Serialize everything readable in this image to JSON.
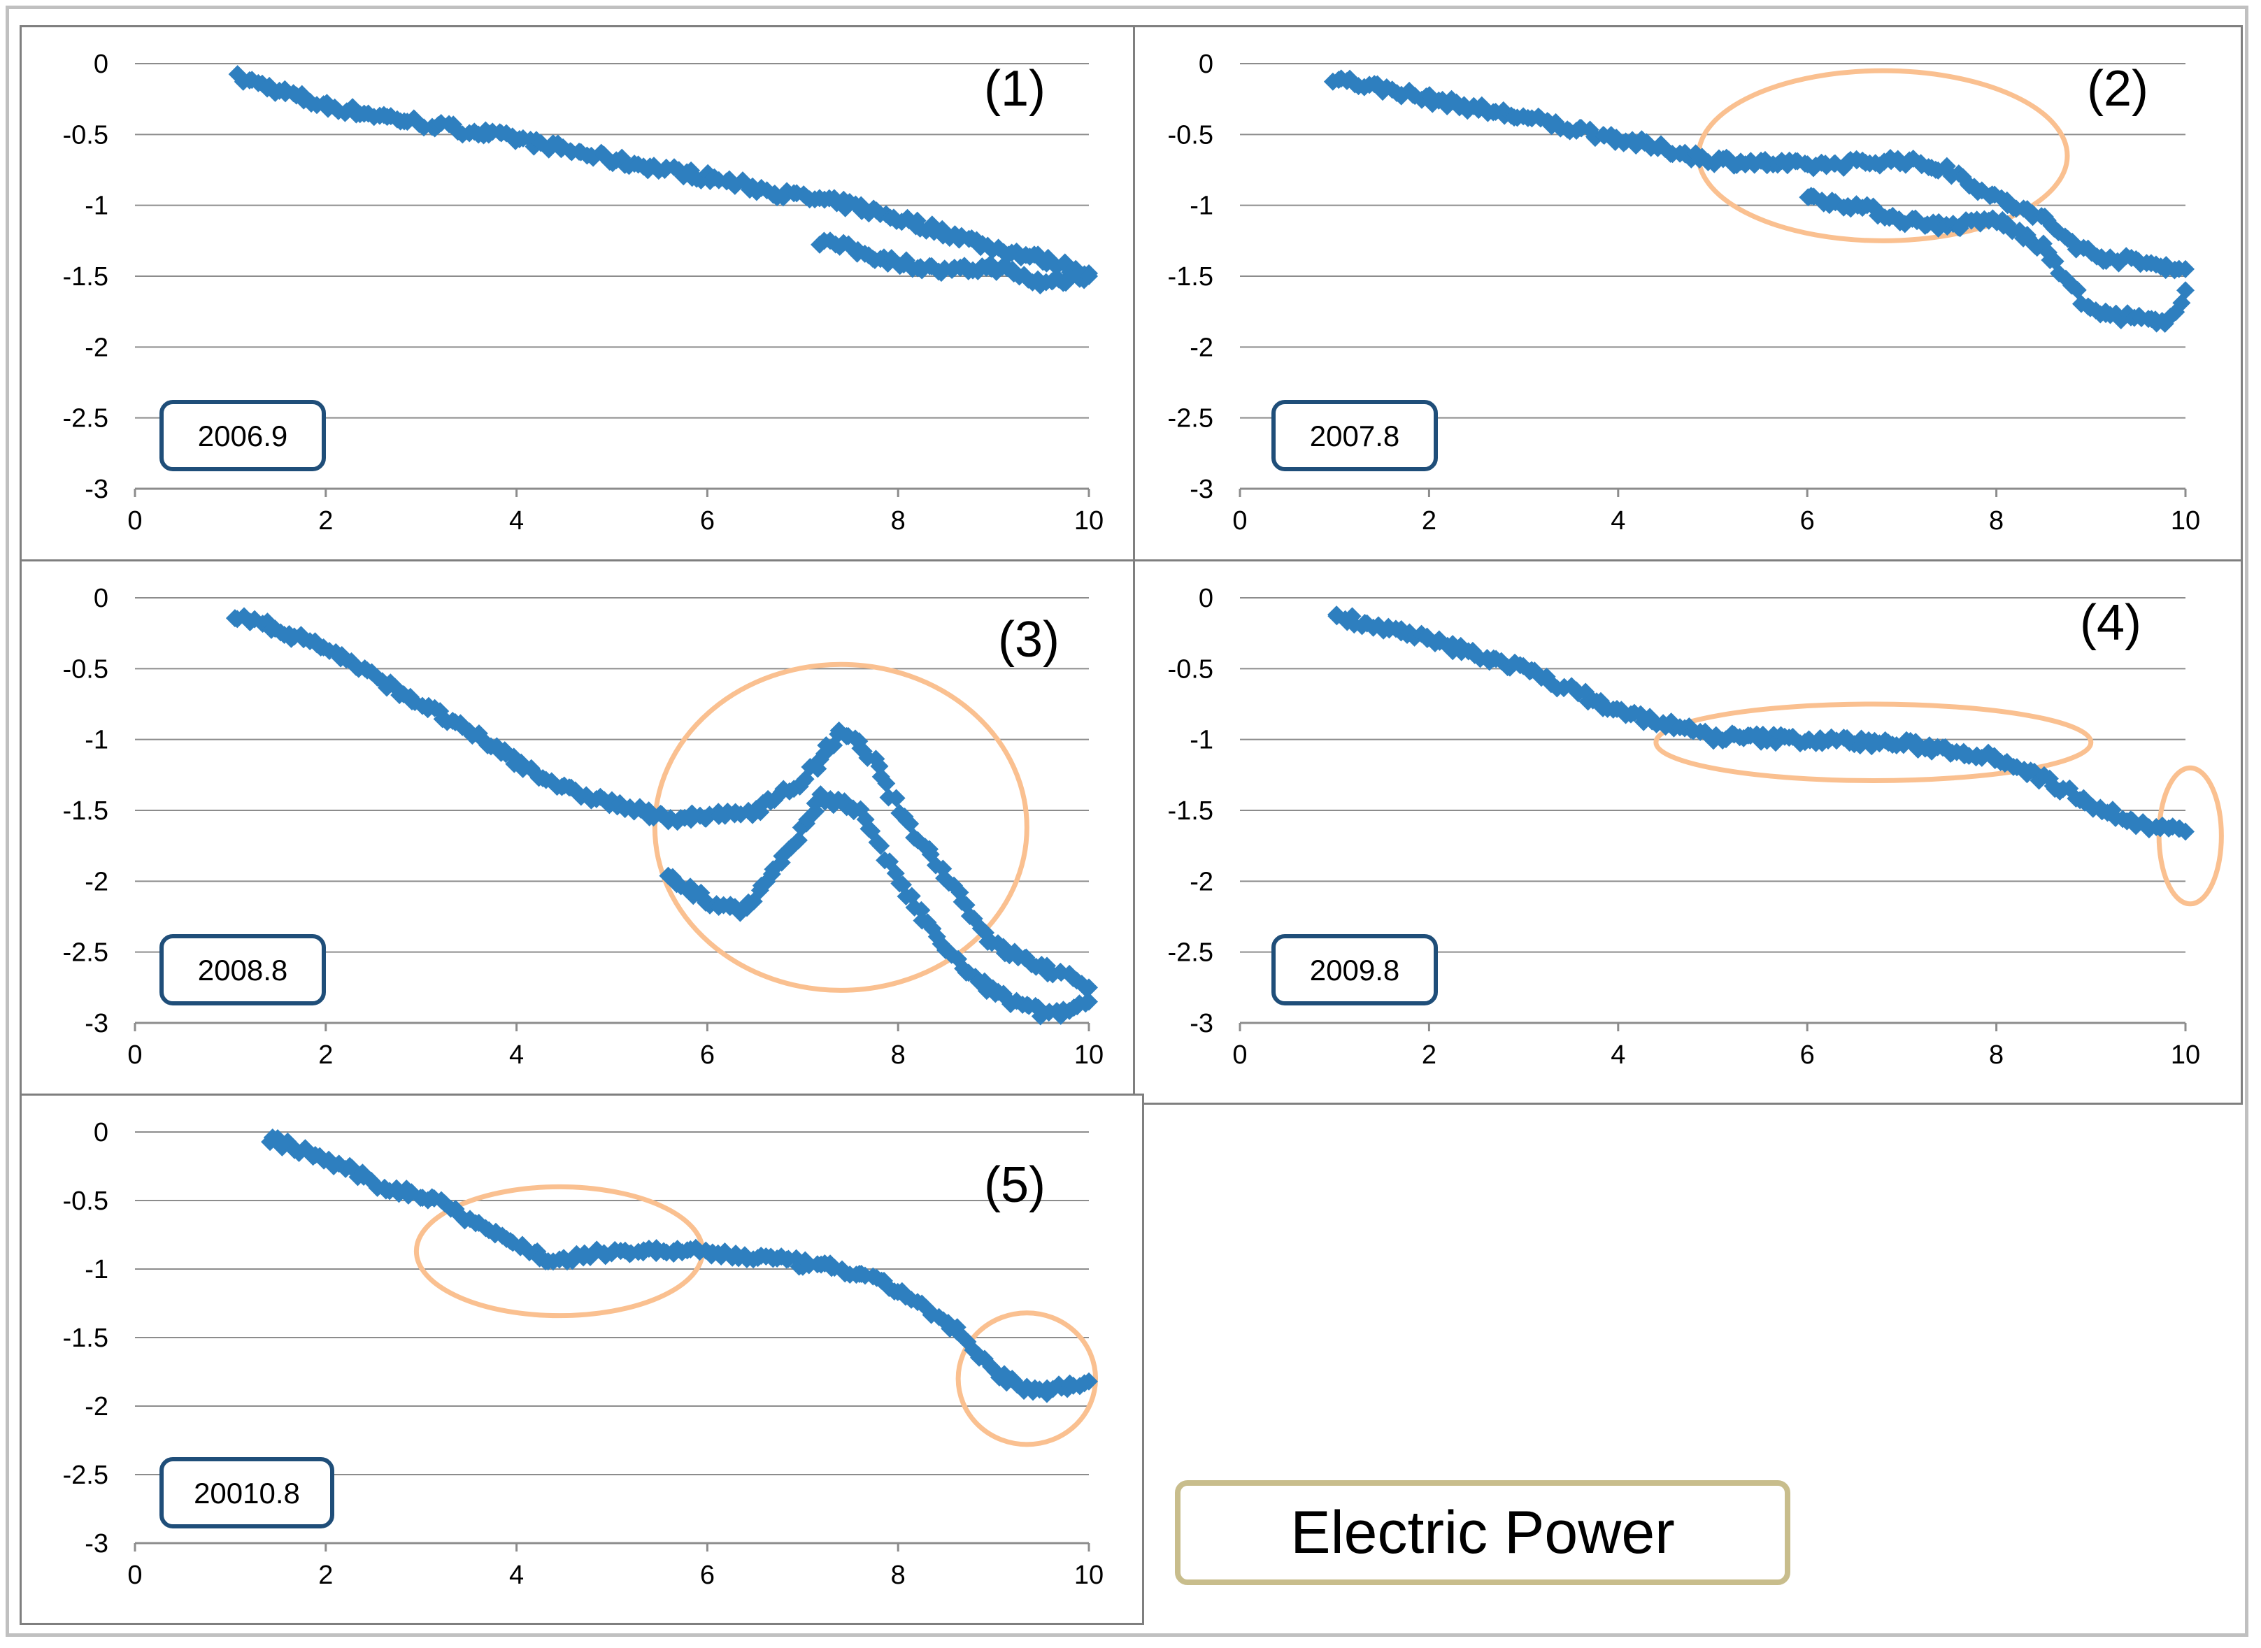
{
  "legend_title": "Electric Power",
  "colors": {
    "marker": "#2e7fbf",
    "highlight": "#fac090",
    "date_box": "#1f4e79",
    "grid": "#8c8c8c"
  },
  "chart_data": [
    {
      "type": "scatter",
      "panel_label": "(1)",
      "date_label": "2006.9",
      "xlim": [
        0,
        10
      ],
      "ylim": [
        -3,
        0
      ],
      "xticks": [
        "0",
        "2",
        "4",
        "6",
        "8",
        "10"
      ],
      "yticks": [
        "0",
        "-0.5",
        "-1",
        "-1.5",
        "-2",
        "-2.5",
        "-3"
      ],
      "series": [
        {
          "name": "main",
          "segments": [
            [
              1.1,
              -0.1
            ],
            [
              2,
              -0.3
            ],
            [
              3,
              -0.42
            ],
            [
              4,
              -0.53
            ],
            [
              5,
              -0.68
            ],
            [
              6,
              -0.8
            ],
            [
              6.8,
              -0.92
            ],
            [
              7.5,
              -1.0
            ],
            [
              8.3,
              -1.15
            ],
            [
              9,
              -1.3
            ],
            [
              9.5,
              -1.38
            ],
            [
              10,
              -1.48
            ]
          ]
        },
        {
          "name": "lower",
          "segments": [
            [
              7.2,
              -1.25
            ],
            [
              7.6,
              -1.33
            ],
            [
              8,
              -1.4
            ],
            [
              8.5,
              -1.47
            ],
            [
              9,
              -1.43
            ],
            [
              9.5,
              -1.55
            ],
            [
              10,
              -1.5
            ]
          ]
        }
      ],
      "highlights": []
    },
    {
      "type": "scatter",
      "panel_label": "(2)",
      "date_label": "2007.8",
      "xlim": [
        0,
        10
      ],
      "ylim": [
        -3,
        0
      ],
      "xticks": [
        "0",
        "2",
        "4",
        "6",
        "8",
        "10"
      ],
      "yticks": [
        "0",
        "-0.5",
        "-1",
        "-1.5",
        "-2",
        "-2.5",
        "-3"
      ],
      "series": [
        {
          "name": "main",
          "segments": [
            [
              1,
              -0.1
            ],
            [
              2,
              -0.25
            ],
            [
              3,
              -0.38
            ],
            [
              4,
              -0.53
            ],
            [
              5,
              -0.68
            ],
            [
              6,
              -0.72
            ],
            [
              7,
              -0.68
            ],
            [
              7.5,
              -0.75
            ],
            [
              8,
              -0.95
            ],
            [
              8.5,
              -1.1
            ],
            [
              9,
              -1.35
            ],
            [
              9.5,
              -1.4
            ],
            [
              10,
              -1.45
            ]
          ]
        },
        {
          "name": "lower",
          "segments": [
            [
              6,
              -0.95
            ],
            [
              6.5,
              -1.0
            ],
            [
              7,
              -1.1
            ],
            [
              7.5,
              -1.15
            ],
            [
              8,
              -1.1
            ],
            [
              8.5,
              -1.3
            ],
            [
              9,
              -1.75
            ],
            [
              9.5,
              -1.8
            ],
            [
              9.8,
              -1.85
            ],
            [
              10,
              -1.6
            ]
          ]
        }
      ],
      "highlights": [
        {
          "cx": 6.8,
          "cy": -0.65,
          "rx": 1.95,
          "ry": 0.6
        }
      ]
    },
    {
      "type": "scatter",
      "panel_label": "(3)",
      "date_label": "2008.8",
      "xlim": [
        0,
        10
      ],
      "ylim": [
        -3,
        0
      ],
      "xticks": [
        "0",
        "2",
        "4",
        "6",
        "8",
        "10"
      ],
      "yticks": [
        "0",
        "-0.5",
        "-1",
        "-1.5",
        "-2",
        "-2.5",
        "-3"
      ],
      "series": [
        {
          "name": "main",
          "segments": [
            [
              1.05,
              -0.12
            ],
            [
              2,
              -0.35
            ],
            [
              3,
              -0.75
            ],
            [
              4,
              -1.15
            ],
            [
              4.5,
              -1.35
            ],
            [
              5,
              -1.45
            ],
            [
              5.5,
              -1.55
            ],
            [
              6,
              -1.55
            ],
            [
              6.5,
              -1.5
            ],
            [
              7,
              -1.3
            ],
            [
              7.4,
              -0.95
            ],
            [
              7.7,
              -1.1
            ],
            [
              8,
              -1.5
            ],
            [
              8.5,
              -1.95
            ],
            [
              9,
              -2.45
            ],
            [
              9.5,
              -2.6
            ],
            [
              10,
              -2.75
            ]
          ]
        },
        {
          "name": "lower",
          "segments": [
            [
              5.6,
              -1.95
            ],
            [
              6,
              -2.15
            ],
            [
              6.4,
              -2.2
            ],
            [
              6.8,
              -1.85
            ],
            [
              7.2,
              -1.4
            ],
            [
              7.6,
              -1.5
            ],
            [
              8,
              -2.0
            ],
            [
              8.4,
              -2.4
            ],
            [
              8.8,
              -2.7
            ],
            [
              9.2,
              -2.85
            ],
            [
              9.6,
              -2.95
            ],
            [
              10,
              -2.85
            ]
          ]
        }
      ],
      "highlights": [
        {
          "cx": 7.4,
          "cy": -1.62,
          "rx": 1.95,
          "ry": 1.15
        }
      ]
    },
    {
      "type": "scatter",
      "panel_label": "(4)",
      "date_label": "2009.8",
      "xlim": [
        0,
        10
      ],
      "ylim": [
        -3,
        0
      ],
      "xticks": [
        "0",
        "2",
        "4",
        "6",
        "8",
        "10"
      ],
      "yticks": [
        "0",
        "-0.5",
        "-1",
        "-1.5",
        "-2",
        "-2.5",
        "-3"
      ],
      "series": [
        {
          "name": "main",
          "segments": [
            [
              1,
              -0.12
            ],
            [
              2,
              -0.3
            ],
            [
              3,
              -0.5
            ],
            [
              4,
              -0.8
            ],
            [
              5,
              -0.98
            ],
            [
              6,
              -1.0
            ],
            [
              7,
              -1.03
            ],
            [
              8,
              -1.12
            ],
            [
              8.5,
              -1.28
            ],
            [
              9,
              -1.45
            ],
            [
              9.5,
              -1.6
            ],
            [
              10,
              -1.65
            ]
          ]
        }
      ],
      "highlights": [
        {
          "cx": 6.7,
          "cy": -1.02,
          "rx": 2.3,
          "ry": 0.27
        },
        {
          "cx": 10.05,
          "cy": -1.68,
          "rx": 0.33,
          "ry": 0.48
        }
      ]
    },
    {
      "type": "scatter",
      "panel_label": "(5)",
      "date_label": "20010.8",
      "xlim": [
        0,
        10
      ],
      "ylim": [
        -3,
        0
      ],
      "xticks": [
        "0",
        "2",
        "4",
        "6",
        "8",
        "10"
      ],
      "yticks": [
        "0",
        "-0.5",
        "-1",
        "-1.5",
        "-2",
        "-2.5",
        "-3"
      ],
      "series": [
        {
          "name": "main",
          "segments": [
            [
              1.4,
              -0.05
            ],
            [
              2,
              -0.2
            ],
            [
              2.6,
              -0.4
            ],
            [
              3.2,
              -0.5
            ],
            [
              3.8,
              -0.75
            ],
            [
              4.4,
              -0.95
            ],
            [
              5,
              -0.87
            ],
            [
              5.8,
              -0.87
            ],
            [
              6.6,
              -0.92
            ],
            [
              7.4,
              -1.0
            ],
            [
              8,
              -1.15
            ],
            [
              8.6,
              -1.45
            ],
            [
              9,
              -1.75
            ],
            [
              9.4,
              -1.9
            ],
            [
              10,
              -1.82
            ]
          ]
        }
      ],
      "highlights": [
        {
          "cx": 4.45,
          "cy": -0.87,
          "rx": 1.5,
          "ry": 0.47
        },
        {
          "cx": 9.35,
          "cy": -1.8,
          "rx": 0.72,
          "ry": 0.48
        }
      ]
    }
  ]
}
